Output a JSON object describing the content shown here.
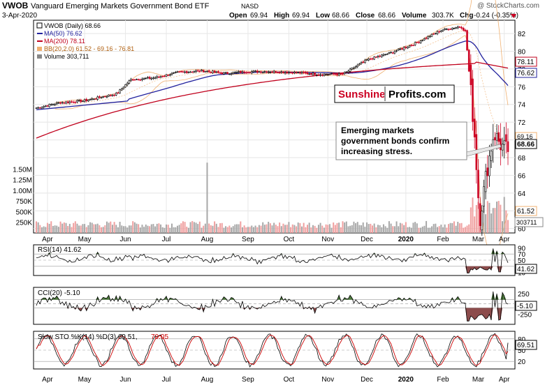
{
  "header": {
    "symbol": "VWOB",
    "name": "Vanguard Emerging Markets Government Bond ETF",
    "exchange": "NASD",
    "copyright": "@ StockCharts.com",
    "date": "3-Apr-2020",
    "open_label": "Open",
    "open": "69.94",
    "high_label": "High",
    "high": "69.94",
    "low_label": "Low",
    "low": "68.66",
    "close_label": "Close",
    "close": "68.66",
    "volume_label": "Volume",
    "volume": "303.7K",
    "chg_label": "Chg",
    "chg": "-0.24 (-0.35%)"
  },
  "legend": {
    "price": "VWOB (Daily) 68.66",
    "ma50": "MA(50) 76.62",
    "ma200": "MA(200) 78.11",
    "bb": "BB(20,2.0) 61.52 - 69.16 - 76.81",
    "volume": "Volume 303,711"
  },
  "watermark": {
    "part1": "Sunshine",
    "part2": "Profits.com"
  },
  "annotation": {
    "line1": "Emerging markets",
    "line2": "government bonds confirm",
    "line3": "increasing stress."
  },
  "colors": {
    "candle_up": "#000000",
    "candle_down": "#cc0022",
    "ma50": "#22229e",
    "ma200": "#c0001c",
    "bollinger": "#f0b070",
    "volume_up": "#a8a8a8",
    "volume_down": "#f0a0a0",
    "indicator_fill_up": "#4c7a3c",
    "indicator_fill_down": "#8c4c4c",
    "sto_k": "#000000",
    "sto_d": "#cc0000"
  },
  "tags": {
    "ma200": "78.11",
    "ma50": "76.62",
    "bb_mid": "69.16",
    "close": "68.66",
    "bb_low": "61.52",
    "volume": "303711",
    "rsi": "41.62",
    "cci": "-5.10",
    "sto": "69.51"
  },
  "panels": {
    "rsi_label": "RSI(14) 41.62",
    "cci_label": "CCI(20) -5.10",
    "sto_label": "Slow STO %K(14) %D(3) 69.51,",
    "sto_d_value": "70.05"
  },
  "chart_data": [
    {
      "type": "candlestick",
      "title": "VWOB Vanguard Emerging Markets Government Bond ETF",
      "x_ticks": [
        "Apr",
        "May",
        "Jun",
        "Jul",
        "Aug",
        "Sep",
        "Oct",
        "Nov",
        "Dec",
        "2020",
        "Feb",
        "Mar",
        "Apr"
      ],
      "y_ticks": [
        60,
        62,
        64,
        66,
        68,
        70,
        72,
        74,
        76,
        78,
        80,
        82
      ],
      "ylim": [
        59.5,
        83.5
      ],
      "series": [
        {
          "name": "VWOB (Daily)",
          "values_approx": [
            [
              0,
              73.6
            ],
            [
              0.05,
              74.2
            ],
            [
              0.1,
              74.4
            ],
            [
              0.17,
              75.2
            ],
            [
              0.2,
              76.8
            ],
            [
              0.25,
              77.0
            ],
            [
              0.3,
              77.6
            ],
            [
              0.35,
              77.8
            ],
            [
              0.4,
              77.5
            ],
            [
              0.45,
              77.7
            ],
            [
              0.5,
              77.7
            ],
            [
              0.55,
              77.6
            ],
            [
              0.6,
              77.4
            ],
            [
              0.65,
              77.4
            ],
            [
              0.7,
              79.0
            ],
            [
              0.75,
              79.8
            ],
            [
              0.8,
              80.8
            ],
            [
              0.86,
              82.4
            ],
            [
              0.9,
              82.8
            ],
            [
              0.91,
              82.2
            ],
            [
              0.93,
              70.0
            ],
            [
              0.94,
              61.0
            ],
            [
              0.955,
              66.5
            ],
            [
              0.97,
              70.8
            ],
            [
              0.985,
              69.4
            ],
            [
              1.0,
              68.66
            ]
          ]
        },
        {
          "name": "MA(50)",
          "last": 76.62
        },
        {
          "name": "MA(200)",
          "last": 78.11
        },
        {
          "name": "BB(20,2.0)",
          "lower": 61.52,
          "middle": 69.16,
          "upper": 76.81
        }
      ]
    },
    {
      "type": "bar",
      "title": "Volume",
      "y_ticks": [
        "250K",
        "500K",
        "750K",
        "1.00M",
        "1.25M",
        "1.50M"
      ],
      "last": 303711
    },
    {
      "type": "line",
      "title": "RSI(14)",
      "y_ticks": [
        10,
        30,
        50,
        70,
        90
      ],
      "last": 41.62
    },
    {
      "type": "line",
      "title": "CCI(20)",
      "y_ticks": [
        -250,
        0,
        250
      ],
      "last": -5.1
    },
    {
      "type": "line",
      "title": "Slow STO %K(14) %D(3)",
      "y_ticks": [
        20,
        50,
        80
      ],
      "k_last": 69.51,
      "d_last": 70.05
    }
  ]
}
